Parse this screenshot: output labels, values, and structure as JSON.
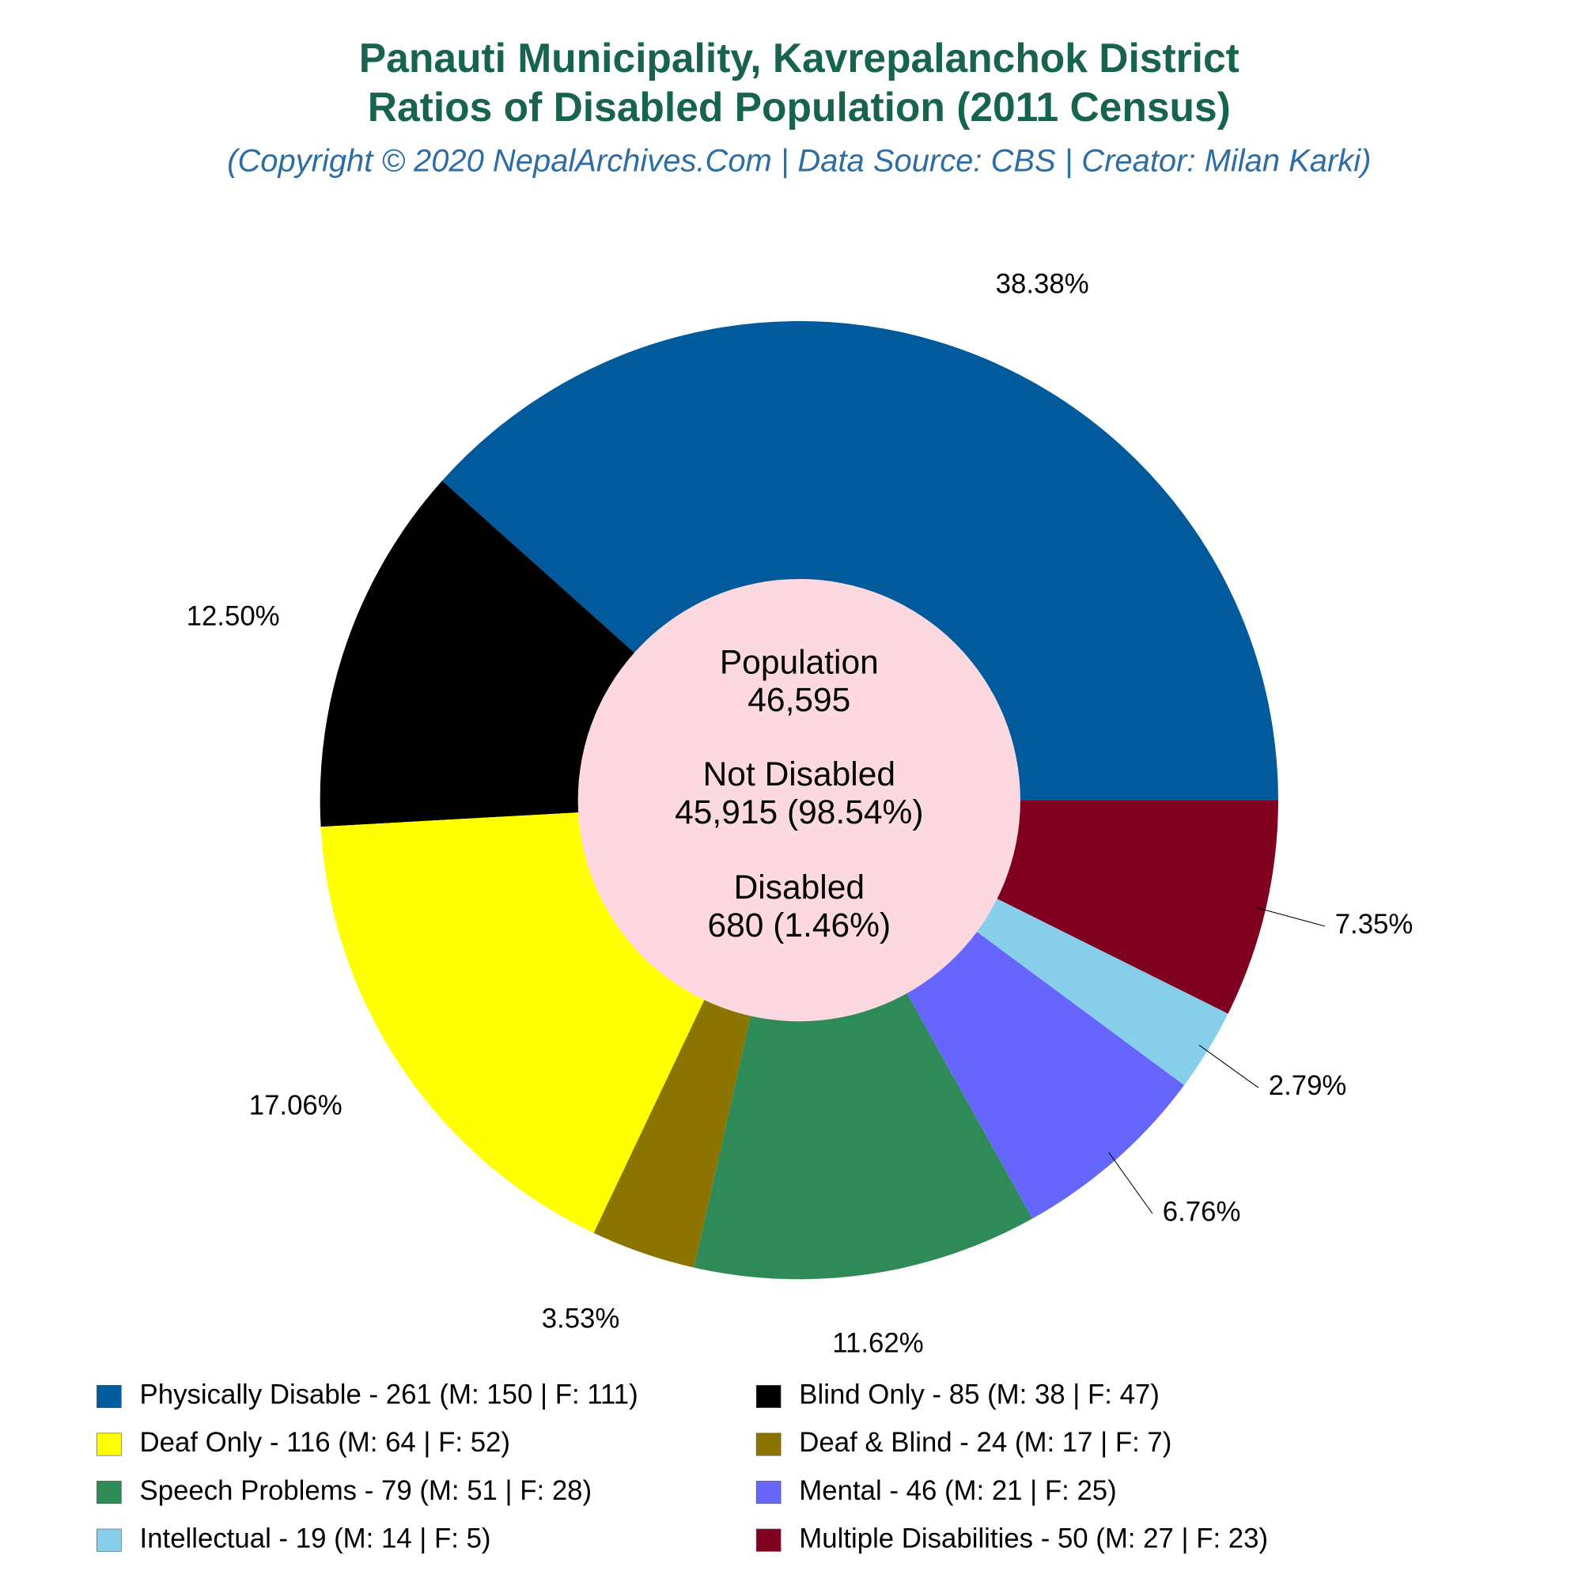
{
  "chart_data": {
    "type": "donut",
    "title": "Panauti Municipality, Kavrepalanchok District",
    "subtitle": "Ratios of Disabled Population (2011 Census)",
    "caption": "(Copyright © 2020 NepalArchives.Com | Data Source: CBS | Creator: Milan Karki)",
    "categories": [
      "Physically Disable - 261 (M: 150 | F: 111)",
      "Blind Only - 85 (M: 38 | F: 47)",
      "Deaf Only - 116 (M: 64 | F: 52)",
      "Deaf & Blind - 24 (M: 17 | F: 7)",
      "Speech Problems - 79 (M: 51 | F: 28)",
      "Mental - 46 (M: 21 | F: 25)",
      "Intellectual - 19 (M: 14 | F: 5)",
      "Multiple Disabilities - 50 (M: 27 | F: 23)"
    ],
    "values": [
      38.38,
      12.5,
      17.06,
      3.53,
      11.62,
      6.76,
      2.79,
      7.35
    ],
    "value_labels": [
      "38.38%",
      "12.50%",
      "17.06%",
      "3.53%",
      "11.62%",
      "6.76%",
      "2.79%",
      "7.35%"
    ],
    "colors": [
      "#005a9c",
      "#000000",
      "#ffff00",
      "#8b7500",
      "#2e8b57",
      "#6666ff",
      "#87ceeb",
      "#800020"
    ],
    "center_text": [
      "Population",
      "46,595",
      "Not Disabled",
      "45,915 (98.54%)",
      "Disabled",
      "680 (1.46%)"
    ]
  }
}
